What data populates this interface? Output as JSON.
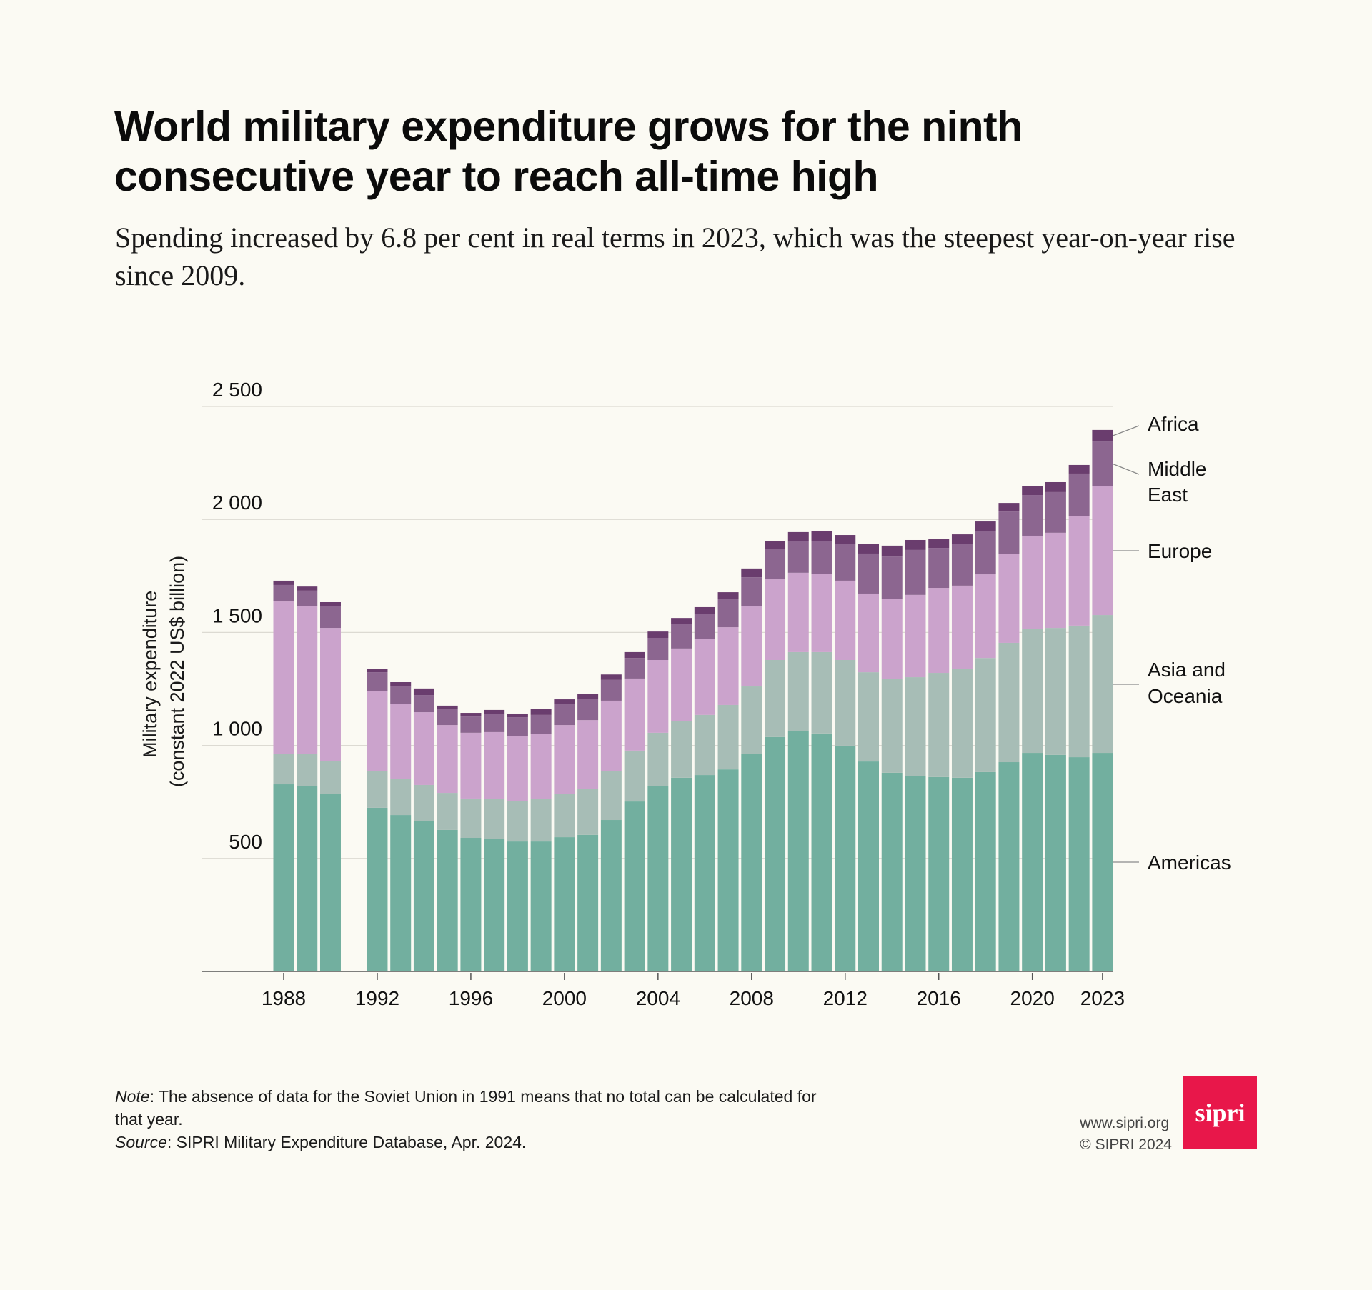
{
  "header": {
    "title": "World military expenditure grows for the ninth consecutive year to reach all-time high",
    "subtitle": "Spending increased by 6.8 per cent in real terms in 2023, which was the steepest year-on-year rise since 2009."
  },
  "footer": {
    "note_label": "Note",
    "note_text": ": The absence of data for the Soviet Union in 1991 means that no total can be calculated for that year.",
    "source_label": "Source",
    "source_text": ": SIPRI Military Expenditure Database, Apr. 2024.",
    "website": "www.sipri.org",
    "copyright": "© SIPRI 2024",
    "logo_text": "sipri"
  },
  "colors": {
    "background": "#FBFAF3",
    "Americas": "#72AF9F",
    "Asia and Oceania": "#A7BDB6",
    "Europe": "#CBA3CC",
    "Middle East": "#8C6690",
    "Africa": "#6A3D6E",
    "logo": "#E8174A"
  },
  "chart_data": {
    "type": "bar",
    "stacked": true,
    "title": "World military expenditure grows for the ninth consecutive year to reach all-time high",
    "xlabel": "",
    "ylabel": "Military expenditure (constant 2022 US$ billion)",
    "ylabel_lines": [
      "Military expenditure",
      "(constant 2022 US$ billion)"
    ],
    "ylim": [
      0,
      2500
    ],
    "yticks": [
      500,
      1000,
      1500,
      2000,
      2500
    ],
    "ytick_labels": [
      "500",
      "1 000",
      "1 500",
      "2 000",
      "2 500"
    ],
    "xticks": [
      1988,
      1992,
      1996,
      2000,
      2004,
      2008,
      2012,
      2016,
      2020,
      2023
    ],
    "xtick_labels": [
      "1988",
      "1992",
      "1996",
      "2000",
      "2004",
      "2008",
      "2012",
      "2016",
      "2020",
      "2023"
    ],
    "grid": true,
    "legend": "right (direct labels on 2023 bar)",
    "categories": [
      1988,
      1989,
      1990,
      1991,
      1992,
      1993,
      1994,
      1995,
      1996,
      1997,
      1998,
      1999,
      2000,
      2001,
      2002,
      2003,
      2004,
      2005,
      2006,
      2007,
      2008,
      2009,
      2010,
      2011,
      2012,
      2013,
      2014,
      2015,
      2016,
      2017,
      2018,
      2019,
      2020,
      2021,
      2022,
      2023
    ],
    "series": [
      {
        "name": "Americas",
        "label_lines": [
          "Americas"
        ],
        "values": [
          828,
          819,
          784,
          null,
          724,
          692,
          664,
          626,
          591,
          585,
          575,
          575,
          594,
          604,
          670,
          752,
          819,
          857,
          869,
          894,
          961,
          1037,
          1065,
          1053,
          999,
          929,
          879,
          863,
          860,
          857,
          882,
          926,
          967,
          958,
          948,
          967
        ]
      },
      {
        "name": "Asia and Oceania",
        "label_lines": [
          "Asia and",
          "Oceania"
        ],
        "values": [
          133,
          142,
          148,
          null,
          161,
          161,
          161,
          164,
          174,
          177,
          180,
          187,
          193,
          205,
          215,
          225,
          237,
          252,
          266,
          285,
          300,
          341,
          348,
          360,
          379,
          395,
          414,
          439,
          461,
          483,
          505,
          528,
          550,
          562,
          582,
          610
        ]
      },
      {
        "name": "Europe",
        "label_lines": [
          "Europe"
        ],
        "values": [
          676,
          657,
          588,
          null,
          357,
          329,
          322,
          300,
          291,
          297,
          285,
          290,
          303,
          303,
          313,
          319,
          322,
          320,
          335,
          344,
          354,
          357,
          351,
          347,
          351,
          348,
          354,
          364,
          376,
          367,
          370,
          392,
          411,
          421,
          486,
          569
        ]
      },
      {
        "name": "Middle East",
        "label_lines": [
          "Middle",
          "East"
        ],
        "values": [
          73,
          67,
          95,
          null,
          82,
          79,
          76,
          70,
          72,
          79,
          85,
          83,
          92,
          95,
          92,
          91,
          98,
          107,
          113,
          124,
          129,
          133,
          139,
          145,
          161,
          177,
          189,
          199,
          177,
          186,
          193,
          189,
          180,
          180,
          187,
          199
        ]
      },
      {
        "name": "Africa",
        "label_lines": [
          "Africa"
        ],
        "values": [
          19,
          18,
          19,
          null,
          16,
          19,
          29,
          16,
          16,
          19,
          16,
          28,
          22,
          22,
          24,
          26,
          28,
          28,
          29,
          31,
          39,
          37,
          41,
          42,
          41,
          44,
          48,
          44,
          41,
          41,
          41,
          38,
          41,
          44,
          38,
          51
        ]
      }
    ]
  }
}
